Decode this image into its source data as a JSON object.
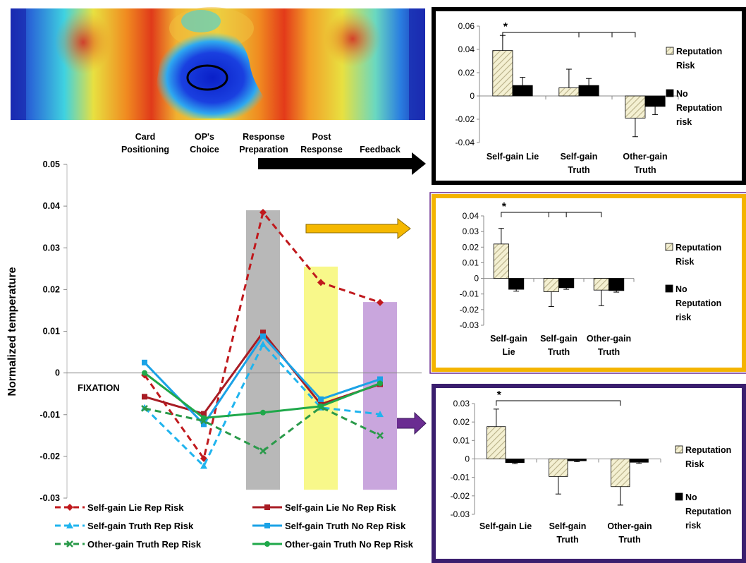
{
  "stage_labels": [
    {
      "line1": "Card",
      "line2": "Positioning"
    },
    {
      "line1": "OP's",
      "line2": "Choice"
    },
    {
      "line1": "Response",
      "line2": "Preparation"
    },
    {
      "line1": "Post",
      "line2": "Response"
    },
    {
      "line1": "",
      "line2": "Feedback"
    }
  ],
  "fixation_label": "FIXATION",
  "colors": {
    "red": "#c0191d",
    "dark_red": "#a81c24",
    "light_blue": "#20b4ee",
    "blue": "#1aa2e6",
    "green_dashed": "#2a9a4a",
    "green": "#1fa84a",
    "gray_band": "#b8b8b8",
    "yellow_band": "#f8f88a",
    "purple_band": "#c9a6dd",
    "panel1_border": "#000000",
    "panel2_border": "#f4b400",
    "panel3_border": "#3a1e6e",
    "arrow_black": "#000000",
    "arrow_orange": "#f5b800",
    "arrow_purple": "#6a2c91",
    "hatch": "#e6e2bb"
  },
  "chart_data": [
    {
      "type": "line",
      "ylabel": "Normalized temperature",
      "ylim": [
        -0.03,
        0.05
      ],
      "yticks": [
        "0.05",
        "0.04",
        "0.03",
        "0.02",
        "0.01",
        "0",
        "-0.01",
        "-0.02",
        "-0.03"
      ],
      "x_stages": 5,
      "highlight_bands": [
        {
          "stage": 3,
          "top": 0.039,
          "bottom": -0.028,
          "color": "gray"
        },
        {
          "stage": 4,
          "top": 0.0255,
          "bottom": -0.028,
          "color": "yellow"
        },
        {
          "stage": 5,
          "top": 0.017,
          "bottom": -0.028,
          "color": "purple"
        }
      ],
      "series": [
        {
          "name": "Self-gain Lie Rep Risk",
          "style": "dashed",
          "color": "red",
          "marker": "diamond",
          "values": [
            -0.0005,
            -0.0205,
            0.0385,
            0.0217,
            0.0169
          ]
        },
        {
          "name": "Self-gain Lie No Rep Risk",
          "style": "solid",
          "color": "dark_red",
          "marker": "square",
          "values": [
            -0.0057,
            -0.0098,
            0.0097,
            -0.0075,
            -0.0027
          ]
        },
        {
          "name": "Self-gain Truth Rep Risk",
          "style": "dashed",
          "color": "light_blue",
          "marker": "triangle",
          "values": [
            -0.0083,
            -0.0223,
            0.0069,
            -0.0083,
            -0.0099
          ]
        },
        {
          "name": "Self-gain Truth No Rep Risk",
          "style": "solid",
          "color": "blue",
          "marker": "square",
          "values": [
            0.0025,
            -0.0123,
            0.0088,
            -0.0063,
            -0.0015
          ]
        },
        {
          "name": "Other-gain Truth Rep Risk",
          "style": "dashed",
          "color": "green_dashed",
          "marker": "x",
          "values": [
            -0.0085,
            -0.0115,
            -0.0187,
            -0.0082,
            -0.015
          ]
        },
        {
          "name": "Other-gain Truth No Rep Risk",
          "style": "solid",
          "color": "green",
          "marker": "circle",
          "values": [
            0.0,
            -0.0108,
            -0.0095,
            -0.008,
            -0.0025
          ]
        }
      ]
    },
    {
      "type": "bar",
      "categories": [
        [
          "Self-gain Lie"
        ],
        [
          "Self-gain",
          "Truth"
        ],
        [
          "Other-gain",
          "Truth"
        ]
      ],
      "ylim": [
        -0.04,
        0.06
      ],
      "yticks": [
        "0.06",
        "0.04",
        "0.02",
        "0",
        "-0.02",
        "-0.04"
      ],
      "legend": [
        [
          "Reputation",
          "Risk"
        ],
        [
          "No",
          "Reputation",
          "risk"
        ]
      ],
      "significance": "*",
      "series": [
        {
          "name": "Reputation Risk",
          "values": [
            0.039,
            0.007,
            -0.019
          ],
          "errors": [
            0.013,
            0.016,
            0.016
          ]
        },
        {
          "name": "No Reputation risk",
          "values": [
            0.009,
            0.009,
            -0.009
          ],
          "errors": [
            0.007,
            0.006,
            0.007
          ]
        }
      ]
    },
    {
      "type": "bar",
      "categories": [
        [
          "Self-gain",
          "Lie"
        ],
        [
          "Self-gain",
          "Truth"
        ],
        [
          "Other-gain",
          "Truth"
        ]
      ],
      "ylim": [
        -0.03,
        0.04
      ],
      "yticks": [
        "0.04",
        "0.03",
        "0.02",
        "0.01",
        "0",
        "-0.01",
        "-0.02",
        "-0.03"
      ],
      "legend": [
        [
          "Reputation",
          "Risk"
        ],
        [
          "No",
          "Reputation",
          "risk"
        ]
      ],
      "significance": "*",
      "series": [
        {
          "name": "Reputation Risk",
          "values": [
            0.022,
            -0.0085,
            -0.0075
          ],
          "errors": [
            0.01,
            0.0095,
            0.01
          ]
        },
        {
          "name": "No Reputation risk",
          "values": [
            -0.007,
            -0.006,
            -0.0078
          ],
          "errors": [
            0.0012,
            0.001,
            0.001
          ]
        }
      ]
    },
    {
      "type": "bar",
      "categories": [
        [
          "Self-gain Lie"
        ],
        [
          "Self-gain",
          "Truth"
        ],
        [
          "Other-gain",
          "Truth"
        ]
      ],
      "ylim": [
        -0.03,
        0.03
      ],
      "yticks": [
        "0.03",
        "0.02",
        "0.01",
        "0",
        "-0.01",
        "-0.02",
        "-0.03"
      ],
      "legend": [
        [
          "Reputation",
          "Risk"
        ],
        [
          "No",
          "Reputation",
          "risk"
        ]
      ],
      "significance": "*",
      "series": [
        {
          "name": "Reputation Risk",
          "values": [
            0.0175,
            -0.0095,
            -0.015
          ],
          "errors": [
            0.0095,
            0.0095,
            0.01
          ]
        },
        {
          "name": "No Reputation risk",
          "values": [
            -0.002,
            -0.001,
            -0.0018
          ],
          "errors": [
            0.0006,
            0.0005,
            0.0006
          ]
        }
      ]
    }
  ]
}
